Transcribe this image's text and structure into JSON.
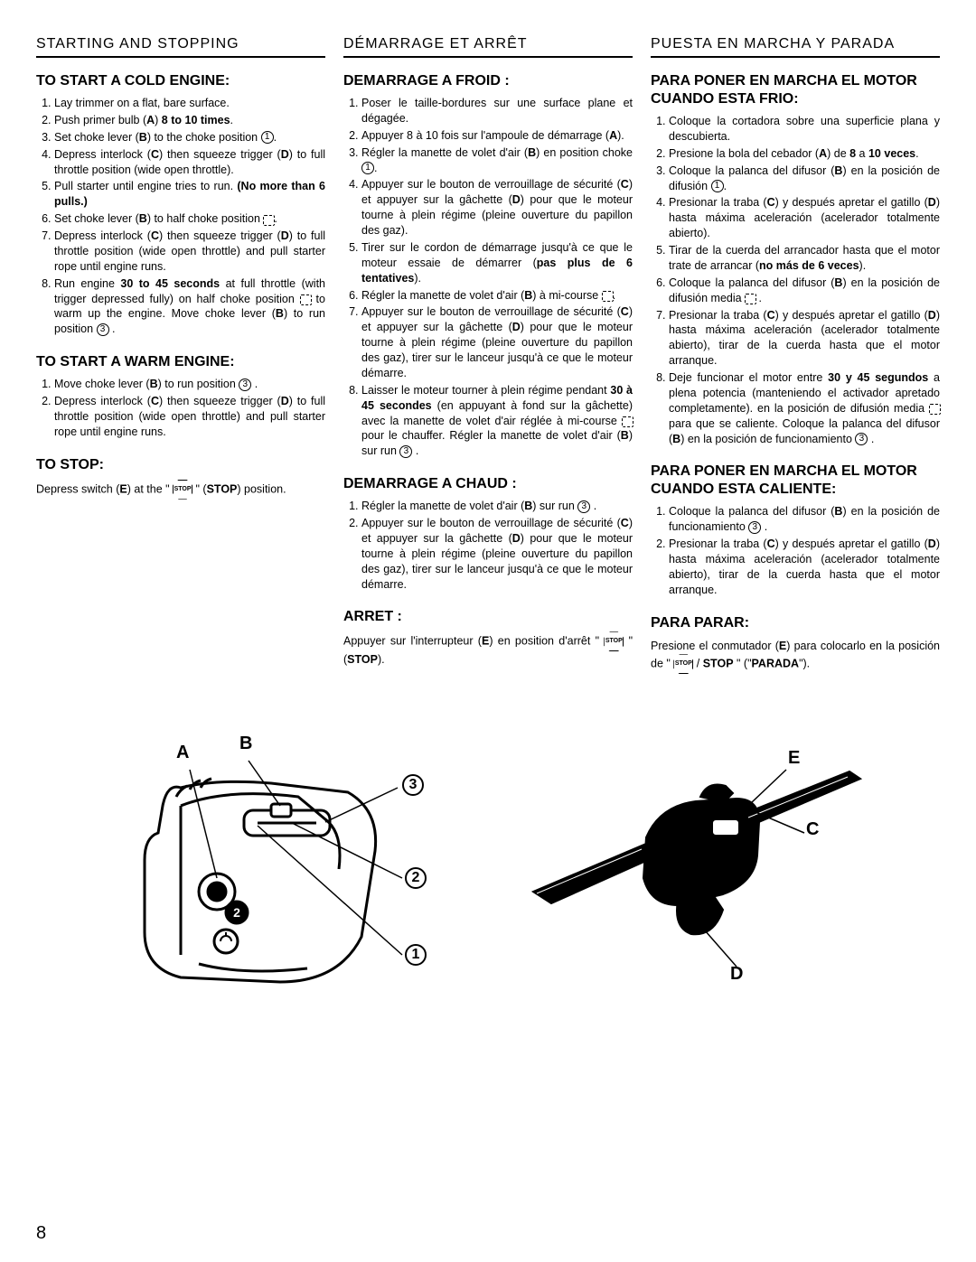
{
  "page_number": "8",
  "columns": {
    "en": {
      "header": "STARTING AND STOPPING",
      "cold_heading": "TO START A COLD ENGINE:",
      "cold_steps": [
        "Lay trimmer on a flat, bare surface.",
        "Push primer bulb (<b>A</b>) <b>8 to 10 times</b>.",
        "Set choke lever (<b>B</b>) to the choke position <span class='circ'>1</span>.",
        "Depress interlock (<b>C</b>) then squeeze trigger (<b>D</b>) to full throttle position (wide open throttle).",
        "Pull starter until engine tries to run. <b>(No more than 6 pulls.)</b>",
        "Set choke lever (<b>B</b>) to half choke position <span class='half-icon'></span>.",
        "Depress interlock (<b>C</b>) then squeeze trigger (<b>D</b>) to full throttle position (wide open throttle) and pull starter rope until engine runs.",
        "Run engine <b>30 to 45 seconds</b> at full throttle (with trigger depressed fully) on half choke position <span class='half-icon'></span> to warm up the engine. Move choke lever (<b>B</b>) to run position <span class='circ'>3</span> ."
      ],
      "warm_heading": "TO START A WARM ENGINE:",
      "warm_steps": [
        "Move choke lever (<b>B</b>) to run position <span class='circ'>3</span> .",
        "Depress interlock (<b>C</b>) then squeeze trigger (<b>D</b>) to full throttle position (wide open throttle) and pull starter rope until engine runs."
      ],
      "stop_heading": "TO STOP:",
      "stop_text": "Depress switch (<b>E</b>) at the \" <span class='stop-icon'>STOP</span> \" (<b>STOP</b>) position."
    },
    "fr": {
      "header": "DÉMARRAGE ET ARRÊT",
      "cold_heading": "DEMARRAGE A FROID :",
      "cold_steps": [
        "Poser le taille-bordures sur une surface plane et dégagée.",
        "Appuyer 8 à 10 fois sur l'ampoule de démarrage (<b>A</b>).",
        "Régler la manette de volet d'air (<b>B</b>) en position choke <span class='circ'>1</span>.",
        "Appuyer sur le bouton de verrouillage de sécurité (<b>C</b>) et appuyer sur la gâchette (<b>D</b>) pour que le moteur tourne à plein régime (pleine ouverture du papillon des gaz).",
        "Tirer sur le cordon de démarrage jusqu'à ce que le moteur essaie de démarrer (<b>pas plus de 6 tentatives</b>).",
        "Régler la manette de volet d'air (<b>B</b>) à mi-course <span class='half-icon'></span>.",
        "Appuyer sur le bouton de verrouillage de sécurité (<b>C</b>) et appuyer sur la gâchette (<b>D</b>) pour que le moteur tourne à plein régime (pleine ouverture du papillon des gaz), tirer sur le lanceur jusqu'à ce que le moteur démarre.",
        "Laisser le moteur tourner à plein régime pendant <b>30 à 45 secondes</b> (en appuyant à fond sur la gâchette) avec la manette de volet d'air réglée à mi-course <span class='half-icon'></span> pour le chauffer. Régler la manette de volet d'air (<b>B</b>) sur run <span class='circ'>3</span> ."
      ],
      "warm_heading": "DEMARRAGE A CHAUD :",
      "warm_steps": [
        "Régler la manette de volet d'air (<b>B</b>) sur run <span class='circ'>3</span> .",
        "Appuyer sur le bouton de verrouillage de sécurité (<b>C</b>) et appuyer sur la gâchette (<b>D</b>) pour que le moteur tourne à plein régime (pleine ouverture du papillon des gaz), tirer sur le lanceur jusqu'à ce que le moteur démarre."
      ],
      "stop_heading": "ARRET :",
      "stop_text": "Appuyer sur l'interrupteur (<b>E</b>) en position d'arrêt \" <span class='stop-icon'>STOP</span> \" (<b>STOP</b>)."
    },
    "es": {
      "header": "PUESTA EN MARCHA Y PARADA",
      "cold_heading": "PARA PONER EN MARCHA EL MOTOR CUANDO ESTA FRIO:",
      "cold_steps": [
        "Coloque la cortadora sobre una superficie plana y descubierta.",
        "Presione la bola del cebador (<b>A</b>) de <b>8</b> a <b>10 veces</b>.",
        "Coloque la palanca del difusor (<b>B</b>) en la posición de difusión <span class='circ'>1</span>.",
        "Presionar la traba (<b>C</b>) y después apretar el gatillo (<b>D</b>) hasta máxima aceleración (acelerador totalmente abierto).",
        "Tirar de la cuerda del arrancador hasta que el motor trate de arrancar (<b>no más de 6 veces</b>).",
        "Coloque la palanca del difusor (<b>B</b>) en la posición de difusión media <span class='half-icon'></span> .",
        "Presionar la traba (<b>C</b>) y después apretar el gatillo (<b>D</b>) hasta máxima aceleración (acelerador totalmente abierto), tirar de la cuerda hasta que el motor arranque.",
        "Deje funcionar el motor entre <b>30 y 45 segundos</b> a plena potencia (manteniendo el activador apretado completamente). en la posición de difusión media <span class='half-icon'></span> para que se caliente. Coloque la palanca del difusor (<b>B</b>) en la posición de funcionamiento <span class='circ'>3</span> ."
      ],
      "warm_heading": "PARA PONER EN MARCHA EL MOTOR CUANDO ESTA CALIENTE:",
      "warm_steps": [
        "Coloque la palanca del difusor (<b>B</b>) en la posición de funcionamiento <span class='circ'>3</span> .",
        "Presionar la traba (<b>C</b>) y después apretar el gatillo (<b>D</b>) hasta máxima aceleración (acelerador totalmente abierto), tirar de la cuerda hasta que el motor arranque."
      ],
      "stop_heading": "PARA PARAR:",
      "stop_text": "Presione el conmutador (<b>E</b>) para colocarlo en la posición de \" <span class='stop-icon'>STOP</span> / <b>STOP</b> \" (\"<b>PARADA</b>\")."
    }
  },
  "figures": {
    "left": {
      "labels": [
        "A",
        "B"
      ],
      "circles": [
        "3",
        "2",
        "1"
      ]
    },
    "right": {
      "labels": [
        "E",
        "C",
        "D"
      ]
    }
  }
}
